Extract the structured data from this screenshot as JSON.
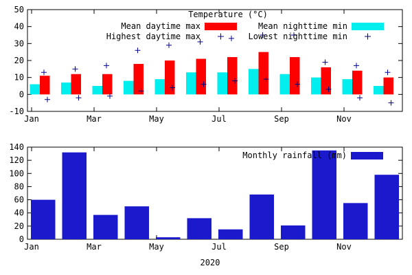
{
  "page": {
    "background": "#ffffff"
  },
  "chart_data": [
    {
      "type": "bar",
      "title": "Temperature (°C)",
      "categories": [
        "Jan",
        "Feb",
        "Mar",
        "Apr",
        "May",
        "Jun",
        "Jul",
        "Aug",
        "Sep",
        "Oct",
        "Nov",
        "Dec"
      ],
      "x_tick_labels": [
        "Jan",
        "Mar",
        "May",
        "Jul",
        "Sep",
        "Nov"
      ],
      "ylim": [
        -10,
        50
      ],
      "ytick_step": 10,
      "grid": false,
      "legend_position": "top-inside",
      "series": [
        {
          "name": "Mean daytime max",
          "style": "bar",
          "color": "#ff0000",
          "values": [
            11,
            12,
            12,
            18,
            20,
            21,
            22,
            25,
            22,
            16,
            14,
            10
          ]
        },
        {
          "name": "Mean nighttime min",
          "style": "bar",
          "color": "#00eeee",
          "values": [
            6,
            7,
            5,
            8,
            9,
            13,
            13,
            15,
            12,
            10,
            9,
            5
          ]
        },
        {
          "name": "Highest daytime max",
          "style": "point",
          "marker": "+",
          "color": "#000099",
          "values": [
            13,
            15,
            17,
            26,
            29,
            31,
            33,
            35,
            35,
            19,
            17,
            13
          ]
        },
        {
          "name": "Lowest nighttime min",
          "style": "point",
          "marker": "+",
          "color": "#000080",
          "values": [
            -3,
            -2,
            -1,
            2,
            4,
            6,
            8,
            9,
            6,
            3,
            -2,
            -5
          ]
        }
      ]
    },
    {
      "type": "bar",
      "legend_label": "Monthly rainfall (mm)",
      "categories": [
        "Jan",
        "Feb",
        "Mar",
        "Apr",
        "May",
        "Jun",
        "Jul",
        "Aug",
        "Sep",
        "Oct",
        "Nov",
        "Dec"
      ],
      "x_tick_labels": [
        "Jan",
        "Mar",
        "May",
        "Jul",
        "Sep",
        "Nov"
      ],
      "xlabel": "2020",
      "ylim": [
        0,
        140
      ],
      "ytick_step": 20,
      "grid": false,
      "legend_position": "top-right-inside",
      "color": "#1a1acc",
      "values": [
        60,
        132,
        37,
        50,
        3,
        32,
        15,
        68,
        21,
        135,
        55,
        98
      ]
    }
  ]
}
